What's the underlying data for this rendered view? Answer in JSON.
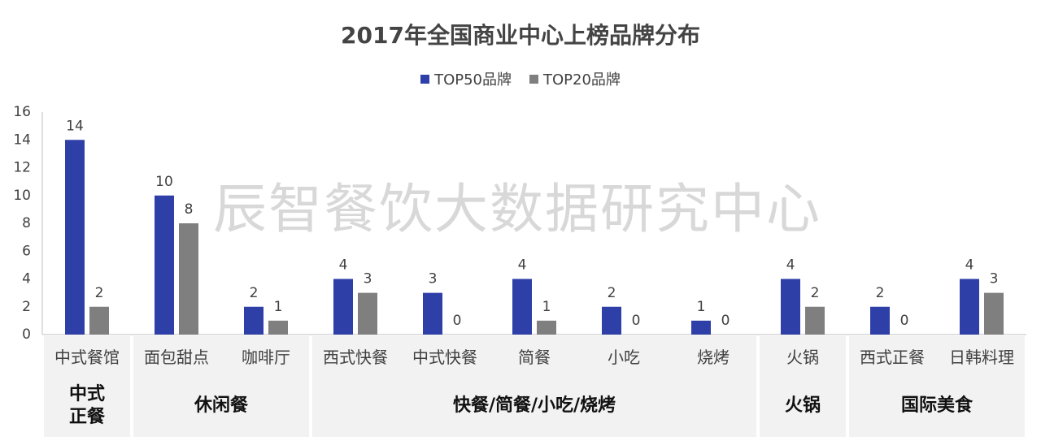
{
  "chart_data": {
    "type": "bar",
    "title": "2017年全国商业中心上榜品牌分布",
    "watermark": "辰智餐饮大数据研究中心",
    "categories": [
      "中式餐馆",
      "面包甜点",
      "咖啡厅",
      "西式快餐",
      "中式快餐",
      "简餐",
      "小吃",
      "烧烤",
      "火锅",
      "西式正餐",
      "日韩料理"
    ],
    "series": [
      {
        "name": "TOP50品牌",
        "color": "#2e3fa8",
        "values": [
          14,
          10,
          2,
          4,
          3,
          4,
          2,
          1,
          4,
          2,
          4
        ]
      },
      {
        "name": "TOP20品牌",
        "color": "#7f7f7f",
        "values": [
          2,
          8,
          1,
          3,
          0,
          1,
          0,
          0,
          2,
          0,
          3
        ]
      }
    ],
    "groups": [
      {
        "lines": [
          "中式",
          "正餐"
        ],
        "categories": [
          "中式餐馆"
        ]
      },
      {
        "lines": [
          "休闲餐"
        ],
        "categories": [
          "面包甜点",
          "咖啡厅"
        ]
      },
      {
        "lines": [
          "快餐/简餐/小吃/烧烤"
        ],
        "categories": [
          "西式快餐",
          "中式快餐",
          "简餐",
          "小吃",
          "烧烤"
        ]
      },
      {
        "lines": [
          "火锅"
        ],
        "categories": [
          "火锅"
        ]
      },
      {
        "lines": [
          "国际美食"
        ],
        "categories": [
          "西式正餐",
          "日韩料理"
        ]
      }
    ],
    "yticks": [
      0,
      2,
      4,
      6,
      8,
      10,
      12,
      14,
      16
    ],
    "ylim": [
      0,
      16
    ],
    "grid": false,
    "legend_position": "top-center"
  }
}
